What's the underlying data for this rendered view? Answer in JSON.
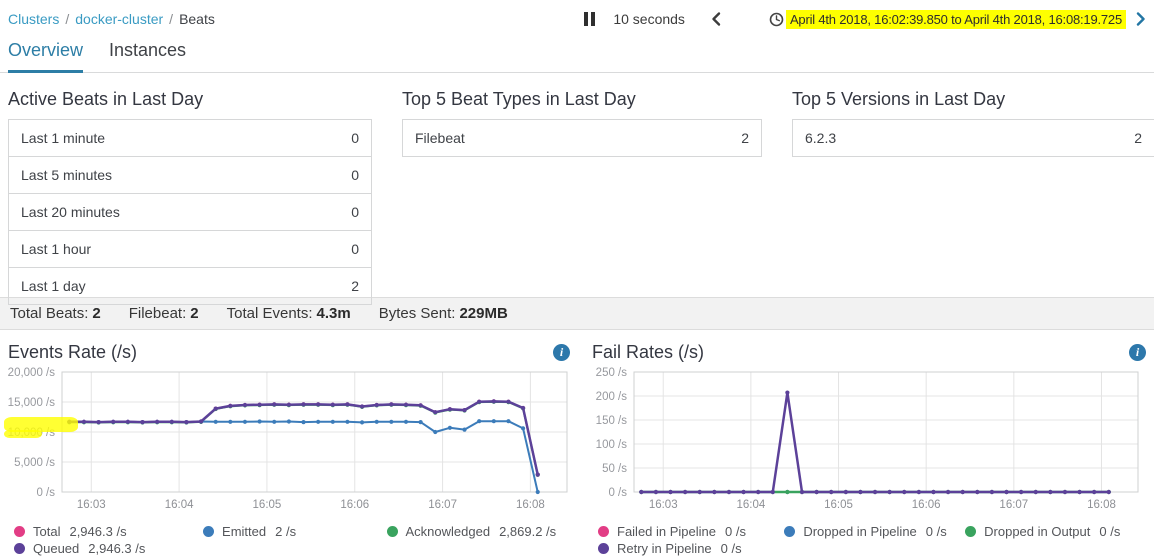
{
  "breadcrumb": {
    "items": [
      {
        "label": "Clusters",
        "link": true
      },
      {
        "label": "docker-cluster",
        "link": true
      },
      {
        "label": "Beats",
        "link": false
      }
    ],
    "separator": "/"
  },
  "toolbar": {
    "refresh_interval": "10 seconds",
    "time_range": "April 4th 2018, 16:02:39.850 to April 4th 2018, 16:08:19.725"
  },
  "tabs": [
    {
      "label": "Overview",
      "active": true
    },
    {
      "label": "Instances",
      "active": false
    }
  ],
  "panels": [
    {
      "title": "Active Beats in Last Day",
      "rows": [
        [
          "Last 1 minute",
          "0"
        ],
        [
          "Last 5 minutes",
          "0"
        ],
        [
          "Last 20 minutes",
          "0"
        ],
        [
          "Last 1 hour",
          "0"
        ],
        [
          "Last 1 day",
          "2"
        ]
      ]
    },
    {
      "title": "Top 5 Beat Types in Last Day",
      "rows": [
        [
          "Filebeat",
          "2"
        ]
      ]
    },
    {
      "title": "Top 5 Versions in Last Day",
      "rows": [
        [
          "6.2.3",
          "2"
        ]
      ]
    }
  ],
  "summary": [
    {
      "label": "Total Beats:",
      "value": "2"
    },
    {
      "label": "Filebeat:",
      "value": "2"
    },
    {
      "label": "Total Events:",
      "value": "4.3m"
    },
    {
      "label": "Bytes Sent:",
      "value": "229MB"
    }
  ],
  "colors": {
    "link": "#3a9bc3",
    "tab_active": "#2d7ea6",
    "highlight_yellow": "#feff00",
    "info_icon": "#2d78ab",
    "series_pink": "#e23d85",
    "series_blue": "#3c7cba",
    "series_green": "#39a35e",
    "series_purple": "#5c4199"
  },
  "chart_data": [
    {
      "type": "line",
      "title": "Events Rate (/s)",
      "xlim": [
        160,
        505
      ],
      "ylim": [
        0,
        20000
      ],
      "grid": true,
      "legend_position": "bottom",
      "xticks": [
        {
          "t": 180,
          "label": "16:03"
        },
        {
          "t": 240,
          "label": "16:04"
        },
        {
          "t": 300,
          "label": "16:05"
        },
        {
          "t": 360,
          "label": "16:06"
        },
        {
          "t": 420,
          "label": "16:07"
        },
        {
          "t": 480,
          "label": "16:08"
        }
      ],
      "yticks": [
        {
          "v": 0,
          "label": "0 /s"
        },
        {
          "v": 5000,
          "label": "5,000 /s"
        },
        {
          "v": 10000,
          "label": "10,000 /s"
        },
        {
          "v": 15000,
          "label": "15,000 /s"
        },
        {
          "v": 20000,
          "label": "20,000 /s"
        }
      ],
      "x": [
        165,
        175,
        185,
        195,
        205,
        215,
        225,
        235,
        245,
        255,
        265,
        275,
        285,
        295,
        305,
        315,
        325,
        335,
        345,
        355,
        365,
        375,
        385,
        395,
        405,
        415,
        425,
        435,
        445,
        455,
        465,
        475,
        485
      ],
      "series": [
        {
          "name": "Total",
          "color": "#e23d85",
          "width": 2,
          "values": [
            11700,
            11700,
            11650,
            11700,
            11700,
            11650,
            11700,
            11700,
            11650,
            11750,
            13900,
            14350,
            14500,
            14550,
            14600,
            14550,
            14600,
            14600,
            14550,
            14600,
            14250,
            14500,
            14600,
            14550,
            14450,
            13300,
            13800,
            13650,
            15050,
            15100,
            15050,
            14000,
            2900
          ]
        },
        {
          "name": "Acknowledged",
          "color": "#39a35e",
          "width": 2,
          "values": [
            11630,
            11630,
            11580,
            11630,
            11630,
            11580,
            11630,
            11630,
            11580,
            11680,
            13830,
            14280,
            14430,
            14480,
            14530,
            14480,
            14530,
            14530,
            14480,
            14530,
            14180,
            14430,
            14530,
            14480,
            14380,
            13230,
            13730,
            13580,
            14980,
            15030,
            14980,
            13930,
            2869
          ]
        },
        {
          "name": "Emitted",
          "color": "#3c7cba",
          "width": 2,
          "values": [
            11700,
            11700,
            11650,
            11700,
            11700,
            11650,
            11700,
            11700,
            11650,
            11750,
            11700,
            11700,
            11700,
            11750,
            11700,
            11750,
            11650,
            11700,
            11700,
            11700,
            11600,
            11700,
            11700,
            11700,
            11650,
            10000,
            10700,
            10400,
            11800,
            11800,
            11800,
            10600,
            0
          ]
        },
        {
          "name": "Queued",
          "color": "#5c4199",
          "width": 2.5,
          "values": [
            11700,
            11700,
            11650,
            11700,
            11700,
            11650,
            11700,
            11700,
            11650,
            11750,
            13900,
            14350,
            14500,
            14550,
            14600,
            14550,
            14600,
            14600,
            14550,
            14600,
            14250,
            14500,
            14600,
            14550,
            14450,
            13300,
            13800,
            13650,
            15050,
            15100,
            15050,
            14000,
            2900
          ]
        }
      ],
      "legend": [
        {
          "label": "Total",
          "value": "2,946.3 /s",
          "color": "#e23d85"
        },
        {
          "label": "Emitted",
          "value": "2 /s",
          "color": "#3c7cba"
        },
        {
          "label": "Acknowledged",
          "value": "2,869.2 /s",
          "color": "#39a35e"
        },
        {
          "label": "Queued",
          "value": "2,946.3 /s",
          "color": "#5c4199"
        }
      ]
    },
    {
      "type": "line",
      "title": "Fail Rates (/s)",
      "xlim": [
        160,
        505
      ],
      "ylim": [
        0,
        250
      ],
      "grid": true,
      "legend_position": "bottom",
      "xticks": [
        {
          "t": 180,
          "label": "16:03"
        },
        {
          "t": 240,
          "label": "16:04"
        },
        {
          "t": 300,
          "label": "16:05"
        },
        {
          "t": 360,
          "label": "16:06"
        },
        {
          "t": 420,
          "label": "16:07"
        },
        {
          "t": 480,
          "label": "16:08"
        }
      ],
      "yticks": [
        {
          "v": 0,
          "label": "0 /s"
        },
        {
          "v": 50,
          "label": "50 /s"
        },
        {
          "v": 100,
          "label": "100 /s"
        },
        {
          "v": 150,
          "label": "150 /s"
        },
        {
          "v": 200,
          "label": "200 /s"
        },
        {
          "v": 250,
          "label": "250 /s"
        }
      ],
      "x": [
        165,
        175,
        185,
        195,
        205,
        215,
        225,
        235,
        245,
        255,
        265,
        275,
        285,
        295,
        305,
        315,
        325,
        335,
        345,
        355,
        365,
        375,
        385,
        395,
        405,
        415,
        425,
        435,
        445,
        455,
        465,
        475,
        485
      ],
      "series": [
        {
          "name": "Failed in Pipeline",
          "color": "#e23d85",
          "width": 2,
          "values": [
            0,
            0,
            0,
            0,
            0,
            0,
            0,
            0,
            0,
            0,
            0,
            0,
            0,
            0,
            0,
            0,
            0,
            0,
            0,
            0,
            0,
            0,
            0,
            0,
            0,
            0,
            0,
            0,
            0,
            0,
            0,
            0,
            0
          ]
        },
        {
          "name": "Dropped in Pipeline",
          "color": "#3c7cba",
          "width": 2,
          "values": [
            0,
            0,
            0,
            0,
            0,
            0,
            0,
            0,
            0,
            0,
            0,
            0,
            0,
            0,
            0,
            0,
            0,
            0,
            0,
            0,
            0,
            0,
            0,
            0,
            0,
            0,
            0,
            0,
            0,
            0,
            0,
            0,
            0
          ]
        },
        {
          "name": "Dropped in Output",
          "color": "#39a35e",
          "width": 2.5,
          "values": [
            0,
            0,
            0,
            0,
            0,
            0,
            0,
            0,
            0,
            0,
            0,
            0,
            0,
            0,
            0,
            0,
            0,
            0,
            0,
            0,
            0,
            0,
            0,
            0,
            0,
            0,
            0,
            0,
            0,
            0,
            0,
            0,
            0
          ]
        },
        {
          "name": "Retry in Pipeline",
          "color": "#5c4199",
          "width": 2.5,
          "values": [
            0,
            0,
            0,
            0,
            0,
            0,
            0,
            0,
            0,
            0,
            207,
            0,
            0,
            0,
            0,
            0,
            0,
            0,
            0,
            0,
            0,
            0,
            0,
            0,
            0,
            0,
            0,
            0,
            0,
            0,
            0,
            0,
            0
          ]
        }
      ],
      "legend": [
        {
          "label": "Failed in Pipeline",
          "value": "0 /s",
          "color": "#e23d85"
        },
        {
          "label": "Dropped in Pipeline",
          "value": "0 /s",
          "color": "#3c7cba"
        },
        {
          "label": "Dropped in Output",
          "value": "0 /s",
          "color": "#39a35e"
        },
        {
          "label": "Retry in Pipeline",
          "value": "0 /s",
          "color": "#5c4199"
        }
      ]
    }
  ]
}
